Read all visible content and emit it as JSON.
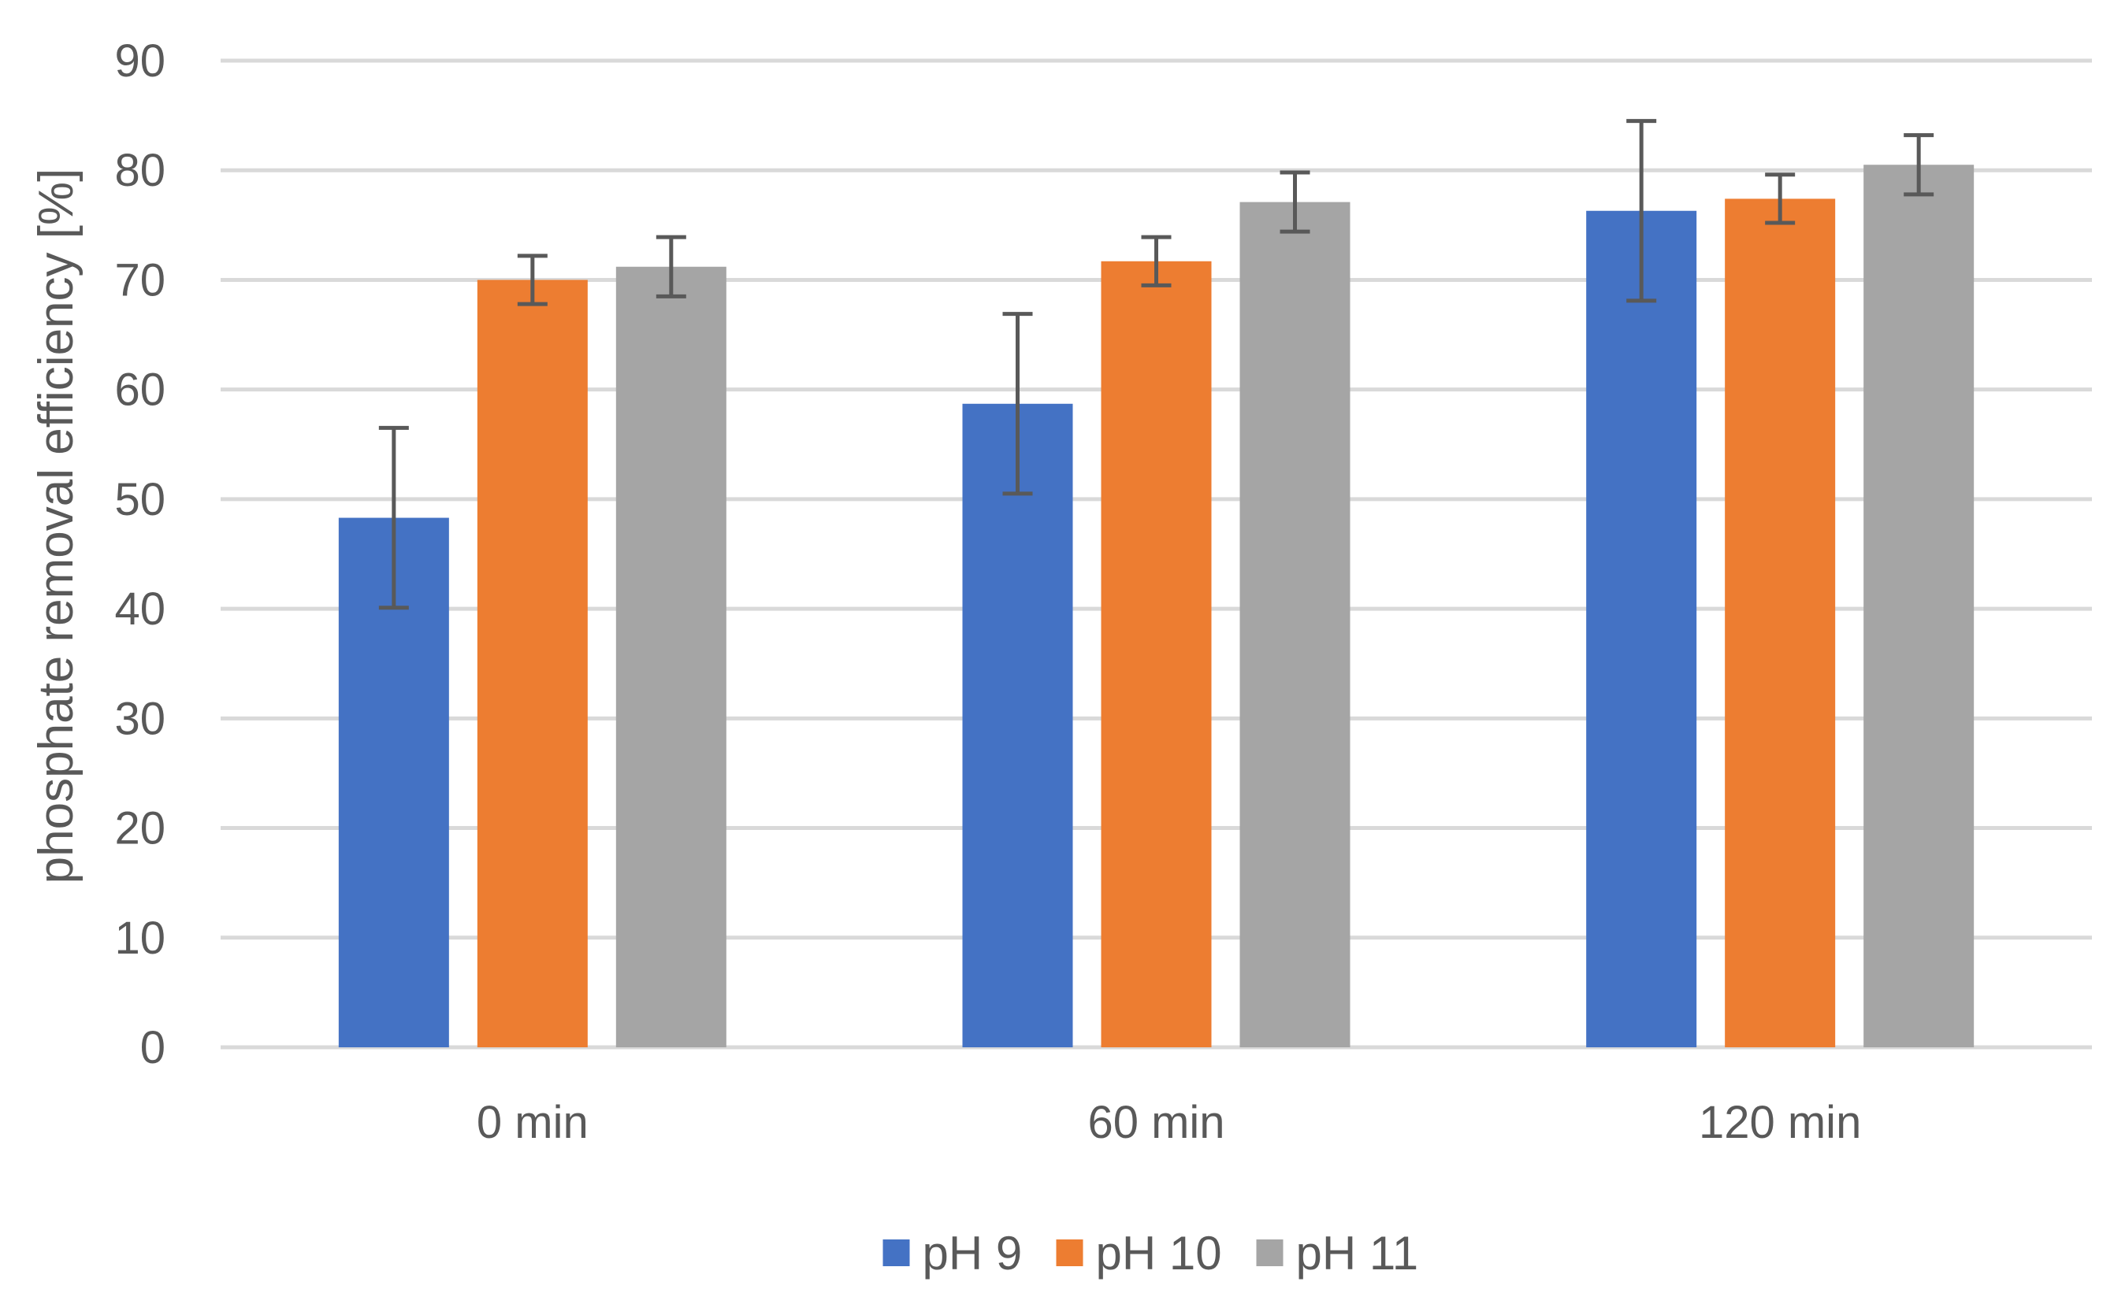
{
  "chart_data": {
    "type": "bar",
    "title": "",
    "xlabel": "",
    "ylabel": "phosphate removal efficiency [%]",
    "ylim": [
      0,
      90
    ],
    "yticks": [
      0,
      10,
      20,
      30,
      40,
      50,
      60,
      70,
      80,
      90
    ],
    "grid": true,
    "legend_position": "bottom",
    "categories": [
      "0 min",
      "60 min",
      "120 min"
    ],
    "series": [
      {
        "name": "pH 9",
        "color": "#4472C4",
        "values": [
          48.3,
          58.7,
          76.3
        ],
        "errors": [
          8.2,
          8.2,
          8.2
        ]
      },
      {
        "name": "pH 10",
        "color": "#ED7D31",
        "values": [
          70.0,
          71.7,
          77.4
        ],
        "errors": [
          2.2,
          2.2,
          2.2
        ]
      },
      {
        "name": "pH 11",
        "color": "#A5A5A5",
        "values": [
          71.2,
          77.1,
          80.5
        ],
        "errors": [
          2.7,
          2.7,
          2.7
        ]
      }
    ],
    "colors": {
      "gridline": "#D9D9D9",
      "error_bar": "#595959",
      "text": "#595959"
    }
  }
}
